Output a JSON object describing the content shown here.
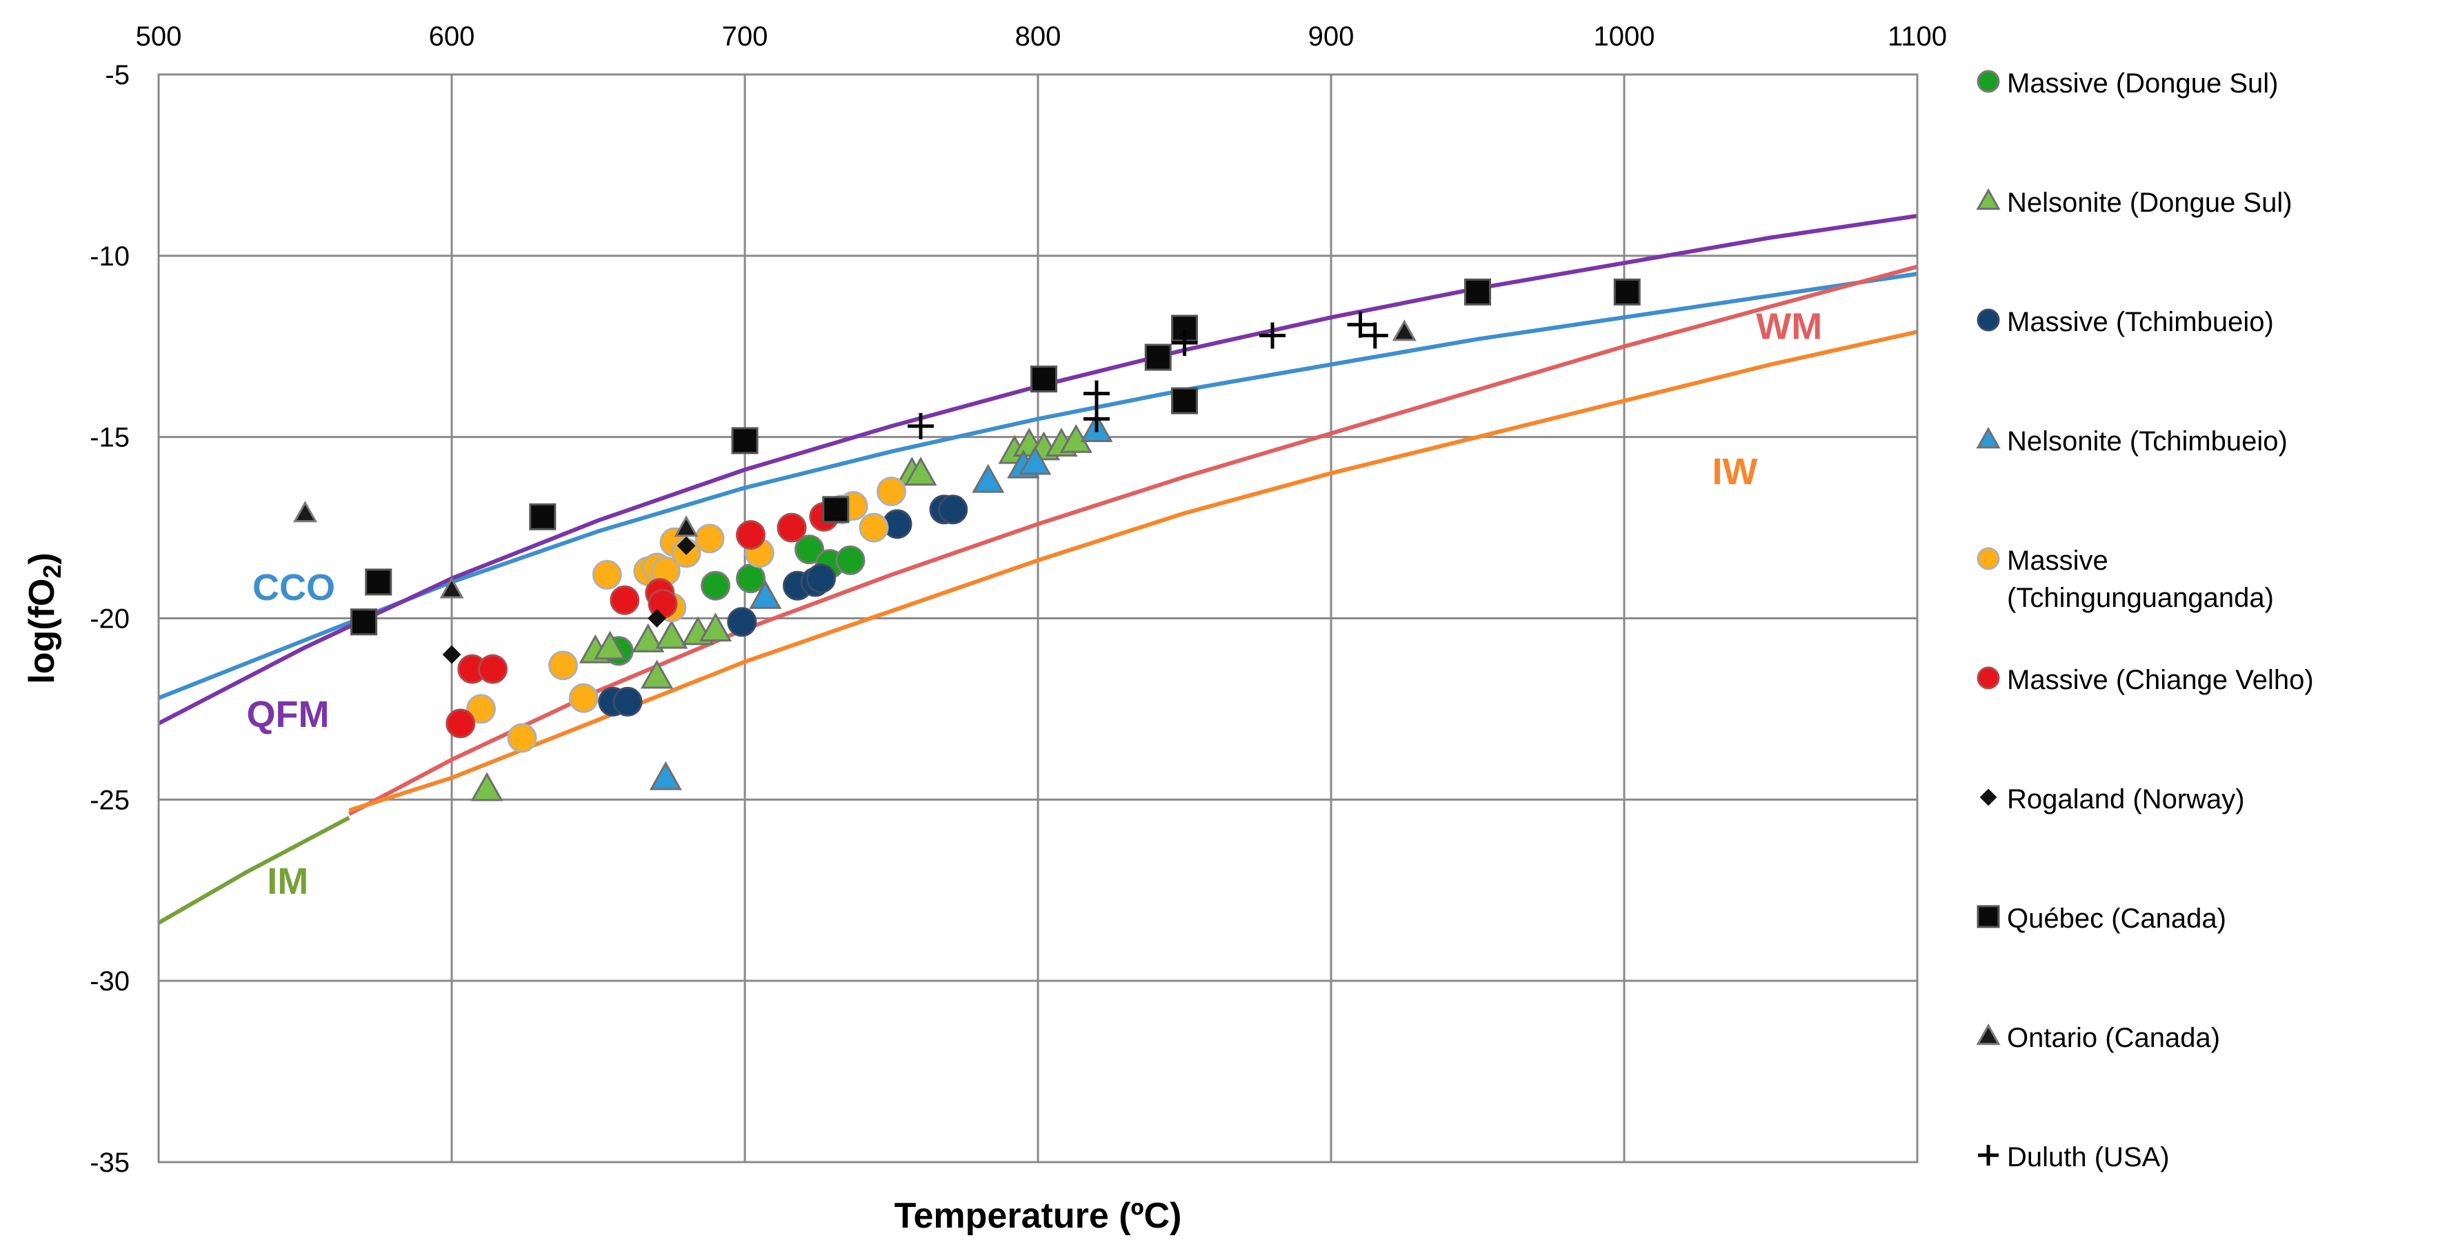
{
  "chart_data": {
    "type": "scatter",
    "title": "",
    "xlabel": "Temperature (ºC)",
    "ylabel_prefix": "log(fO",
    "ylabel_sub": "2",
    "ylabel_suffix": ")",
    "xlim": [
      500,
      1100
    ],
    "ylim": [
      -35,
      -5
    ],
    "x_ticks": [
      500,
      600,
      700,
      800,
      900,
      1000,
      1100
    ],
    "y_ticks": [
      -5,
      -10,
      -15,
      -20,
      -25,
      -30,
      -35
    ],
    "grid": true,
    "legend_position": "right",
    "curves": [
      {
        "name": "CCO",
        "color": "#3d8fce",
        "label_color": "#3d8fce",
        "label_at": [
          532,
          -19.5
        ],
        "points": [
          [
            500,
            -22.2
          ],
          [
            550,
            -20.6
          ],
          [
            600,
            -19.0
          ],
          [
            650,
            -17.6
          ],
          [
            700,
            -16.4
          ],
          [
            750,
            -15.4
          ],
          [
            800,
            -14.5
          ],
          [
            850,
            -13.7
          ],
          [
            900,
            -13.0
          ],
          [
            950,
            -12.3
          ],
          [
            1000,
            -11.7
          ],
          [
            1050,
            -11.1
          ],
          [
            1100,
            -10.5
          ]
        ]
      },
      {
        "name": "QFM",
        "color": "#7a35a8",
        "label_color": "#7a35a8",
        "label_at": [
          530,
          -23.0
        ],
        "points": [
          [
            500,
            -22.9
          ],
          [
            550,
            -20.8
          ],
          [
            600,
            -18.9
          ],
          [
            650,
            -17.3
          ],
          [
            700,
            -15.9
          ],
          [
            750,
            -14.7
          ],
          [
            800,
            -13.6
          ],
          [
            850,
            -12.6
          ],
          [
            900,
            -11.7
          ],
          [
            950,
            -10.9
          ],
          [
            1000,
            -10.2
          ],
          [
            1050,
            -9.5
          ],
          [
            1100,
            -8.9
          ]
        ]
      },
      {
        "name": "WM",
        "color": "#e06060",
        "label_color": "#e06060",
        "label_at": [
          1045,
          -12.3
        ],
        "points": [
          [
            565,
            -25.4
          ],
          [
            600,
            -23.9
          ],
          [
            650,
            -22.0
          ],
          [
            700,
            -20.3
          ],
          [
            750,
            -18.8
          ],
          [
            800,
            -17.4
          ],
          [
            850,
            -16.1
          ],
          [
            900,
            -14.9
          ],
          [
            950,
            -13.7
          ],
          [
            1000,
            -12.5
          ],
          [
            1050,
            -11.4
          ],
          [
            1100,
            -10.3
          ]
        ]
      },
      {
        "name": "IW",
        "color": "#f7862a",
        "label_color": "#f7862a",
        "label_at": [
          1030,
          -16.3
        ],
        "points": [
          [
            565,
            -25.3
          ],
          [
            600,
            -24.4
          ],
          [
            650,
            -22.8
          ],
          [
            700,
            -21.2
          ],
          [
            750,
            -19.8
          ],
          [
            800,
            -18.4
          ],
          [
            850,
            -17.1
          ],
          [
            900,
            -16.0
          ],
          [
            950,
            -15.0
          ],
          [
            1000,
            -14.0
          ],
          [
            1050,
            -13.0
          ],
          [
            1100,
            -12.1
          ]
        ]
      },
      {
        "name": "IM",
        "color": "#77a03a",
        "label_color": "#77a03a",
        "label_at": [
          537,
          -27.6
        ],
        "points": [
          [
            500,
            -28.4
          ],
          [
            530,
            -27.0
          ],
          [
            565,
            -25.5
          ]
        ]
      }
    ],
    "series": [
      {
        "name": "Massive (Dongue Sul)",
        "marker": "circle",
        "color": "#1aa021",
        "stroke": "#7a7a7a",
        "size": 40,
        "points": [
          [
            657,
            -20.9
          ],
          [
            690,
            -19.1
          ],
          [
            702,
            -18.9
          ],
          [
            722,
            -18.1
          ],
          [
            729,
            -18.5
          ],
          [
            736,
            -18.4
          ]
        ]
      },
      {
        "name": "Nelsonite (Dongue Sul)",
        "marker": "triangle",
        "color": "#79c04a",
        "stroke": "#6f6f6f",
        "size": 42,
        "points": [
          [
            612,
            -24.7
          ],
          [
            649,
            -20.9
          ],
          [
            654,
            -20.8
          ],
          [
            667,
            -20.6
          ],
          [
            670,
            -21.6
          ],
          [
            675,
            -20.5
          ],
          [
            684,
            -20.4
          ],
          [
            690,
            -20.3
          ],
          [
            757,
            -16.0
          ],
          [
            760,
            -16.0
          ],
          [
            792,
            -15.4
          ],
          [
            797,
            -15.2
          ],
          [
            802,
            -15.3
          ],
          [
            808,
            -15.2
          ],
          [
            813,
            -15.1
          ]
        ]
      },
      {
        "name": "Massive (Tchimbueio)",
        "marker": "circle",
        "color": "#14416d",
        "stroke": "#3a4a6a",
        "size": 40,
        "points": [
          [
            655,
            -22.3
          ],
          [
            660,
            -22.3
          ],
          [
            699,
            -20.1
          ],
          [
            718,
            -19.1
          ],
          [
            724,
            -19.0
          ],
          [
            726,
            -18.9
          ],
          [
            752,
            -17.4
          ],
          [
            768,
            -17.0
          ],
          [
            771,
            -17.0
          ]
        ]
      },
      {
        "name": "Nelsonite (Tchimbueio)",
        "marker": "triangle",
        "color": "#2d9ad9",
        "stroke": "#6f6f6f",
        "size": 42,
        "points": [
          [
            673,
            -24.4
          ],
          [
            707,
            -19.4
          ],
          [
            783,
            -16.2
          ],
          [
            795,
            -15.8
          ],
          [
            799,
            -15.7
          ],
          [
            820,
            -14.8
          ]
        ]
      },
      {
        "name": "Massive (Tchingunguanganda)",
        "name_line1": "Massive",
        "name_line2": "(Tchingunguanganda)",
        "marker": "circle",
        "color": "#fdad16",
        "stroke": "#b0b0b0",
        "size": 40,
        "points": [
          [
            653,
            -18.8
          ],
          [
            638,
            -21.3
          ],
          [
            645,
            -22.2
          ],
          [
            610,
            -22.5
          ],
          [
            624,
            -23.3
          ],
          [
            667,
            -18.7
          ],
          [
            670,
            -18.6
          ],
          [
            673,
            -18.7
          ],
          [
            675,
            -19.7
          ],
          [
            676,
            -17.9
          ],
          [
            680,
            -18.2
          ],
          [
            688,
            -17.8
          ],
          [
            705,
            -18.2
          ],
          [
            733,
            -17.0
          ],
          [
            737,
            -16.9
          ],
          [
            744,
            -17.5
          ],
          [
            750,
            -16.5
          ]
        ]
      },
      {
        "name": "Massive (Chiange Velho)",
        "marker": "circle",
        "color": "#e4161b",
        "stroke": "#b04a4a",
        "size": 40,
        "points": [
          [
            603,
            -22.9
          ],
          [
            607,
            -21.4
          ],
          [
            614,
            -21.4
          ],
          [
            659,
            -19.5
          ],
          [
            671,
            -19.3
          ],
          [
            672,
            -19.6
          ],
          [
            702,
            -17.7
          ],
          [
            716,
            -17.5
          ],
          [
            727,
            -17.2
          ]
        ]
      },
      {
        "name": "Rogaland (Norway)",
        "marker": "diamond",
        "color": "#111111",
        "stroke": "#111111",
        "size": 24,
        "points": [
          [
            600,
            -21.0
          ],
          [
            670,
            -20.0
          ],
          [
            680,
            -18.0
          ]
        ]
      },
      {
        "name": "Québec (Canada)",
        "marker": "square",
        "color": "#0a0a0a",
        "stroke": "#555555",
        "size": 36,
        "points": [
          [
            570,
            -20.1
          ],
          [
            575,
            -19.0
          ],
          [
            631,
            -17.2
          ],
          [
            700,
            -15.1
          ],
          [
            731,
            -17.0
          ],
          [
            802,
            -13.4
          ],
          [
            841,
            -12.8
          ],
          [
            850,
            -12.0
          ],
          [
            850,
            -14.0
          ],
          [
            950,
            -11.0
          ],
          [
            1001,
            -11.0
          ]
        ]
      },
      {
        "name": "Ontario (Canada)",
        "marker": "triangle",
        "color": "#1a1a1a",
        "stroke": "#7a7a7a",
        "size": 30,
        "points": [
          [
            550,
            -17.1
          ],
          [
            600,
            -19.2
          ],
          [
            680,
            -17.5
          ],
          [
            925,
            -12.1
          ]
        ]
      },
      {
        "name": "Duluth (USA)",
        "marker": "plus",
        "color": "#000000",
        "stroke": "#000000",
        "size": 38,
        "points": [
          [
            760,
            -14.7
          ],
          [
            820,
            -13.8
          ],
          [
            820,
            -14.5
          ],
          [
            850,
            -12.4
          ],
          [
            880,
            -12.2
          ],
          [
            910,
            -11.9
          ],
          [
            915,
            -12.2
          ]
        ]
      }
    ]
  }
}
